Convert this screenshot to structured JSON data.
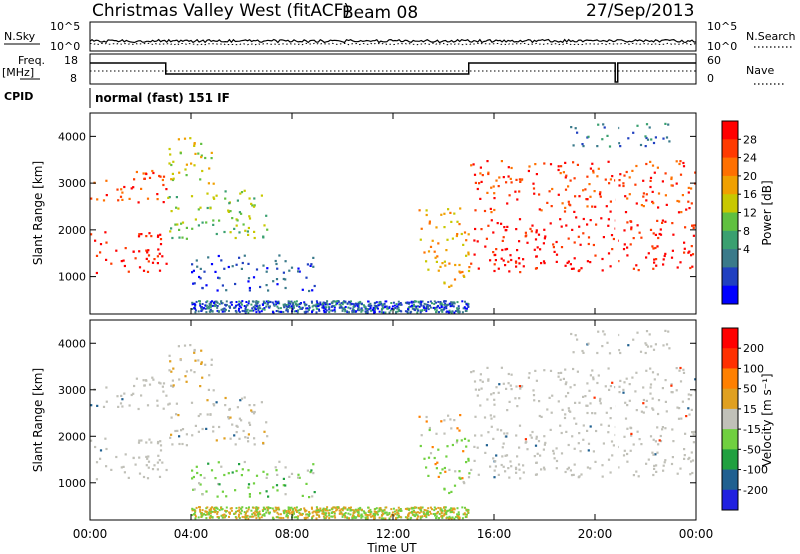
{
  "header": {
    "station": "Christmas Valley West (fitACF)",
    "beam": "Beam 08",
    "date": "27/Sep/2013"
  },
  "strips": {
    "nsky_label": "N.Sky",
    "nsky_ticks": [
      "10^5",
      "10^0"
    ],
    "nsearch_label": "N.Search",
    "nsearch_ticks": [
      "10^5",
      "10^0"
    ],
    "freq_label": "Freq.",
    "freq_unit": "[MHz]",
    "freq_ticks": [
      "18",
      "8"
    ],
    "nave_label": "Nave",
    "nave_ticks": [
      "60",
      "0"
    ],
    "cpid_label": "CPID",
    "cpid_value": "normal (fast) 151 IF"
  },
  "colors": {
    "power_scale": [
      "#0000ff",
      "#2040c0",
      "#3a7a8a",
      "#3aa070",
      "#60c040",
      "#c8c800",
      "#f0a000",
      "#ff7000",
      "#ff3a00",
      "#ff0000"
    ],
    "velocity_scale": [
      "#2020e0",
      "#206090",
      "#20a040",
      "#70d040",
      "#c0c0b8",
      "#e0a020",
      "#ff8000",
      "#ff3000",
      "#ff0000"
    ]
  },
  "chart_data": [
    {
      "type": "heatmap",
      "panel": "power",
      "ylabel": "Slant Range [km]",
      "yticks": [
        "4000",
        "3000",
        "2000",
        "1000"
      ],
      "ylim": [
        200,
        4500
      ],
      "colorbar_label": "Power [dB]",
      "colorbar_ticks": [
        "28",
        "24",
        "20",
        "16",
        "12",
        "8",
        "4"
      ],
      "regions": [
        {
          "t": [
            0,
            3
          ],
          "r": [
            1100,
            2000
          ],
          "level": 9
        },
        {
          "t": [
            0,
            3
          ],
          "r": [
            2600,
            3300
          ],
          "level": 8
        },
        {
          "t": [
            3,
            7
          ],
          "r": [
            1800,
            2900
          ],
          "level": 4
        },
        {
          "t": [
            3,
            5
          ],
          "r": [
            3000,
            4000
          ],
          "level": 5
        },
        {
          "t": [
            4,
            9
          ],
          "r": [
            700,
            1500
          ],
          "level": 1
        },
        {
          "t": [
            13,
            15
          ],
          "r": [
            800,
            2500
          ],
          "level": 6
        },
        {
          "t": [
            15,
            24
          ],
          "r": [
            1100,
            2300
          ],
          "level": 9
        },
        {
          "t": [
            15,
            24
          ],
          "r": [
            2400,
            3500
          ],
          "level": 8
        },
        {
          "t": [
            19,
            23
          ],
          "r": [
            3800,
            4300
          ],
          "level": 2
        }
      ]
    },
    {
      "type": "heatmap",
      "panel": "velocity",
      "ylabel": "Slant Range [km]",
      "yticks": [
        "4000",
        "3000",
        "2000",
        "1000"
      ],
      "ylim": [
        200,
        4500
      ],
      "colorbar_label": "Velocity [m s⁻¹]",
      "colorbar_ticks": [
        "200",
        "100",
        "50",
        "15",
        "-15",
        "-50",
        "-100",
        "-200"
      ],
      "xlabel": "Time UT",
      "xticks": [
        "00:00",
        "04:00",
        "08:00",
        "12:00",
        "16:00",
        "20:00",
        "00:00"
      ],
      "xlim": [
        0,
        24
      ]
    }
  ]
}
